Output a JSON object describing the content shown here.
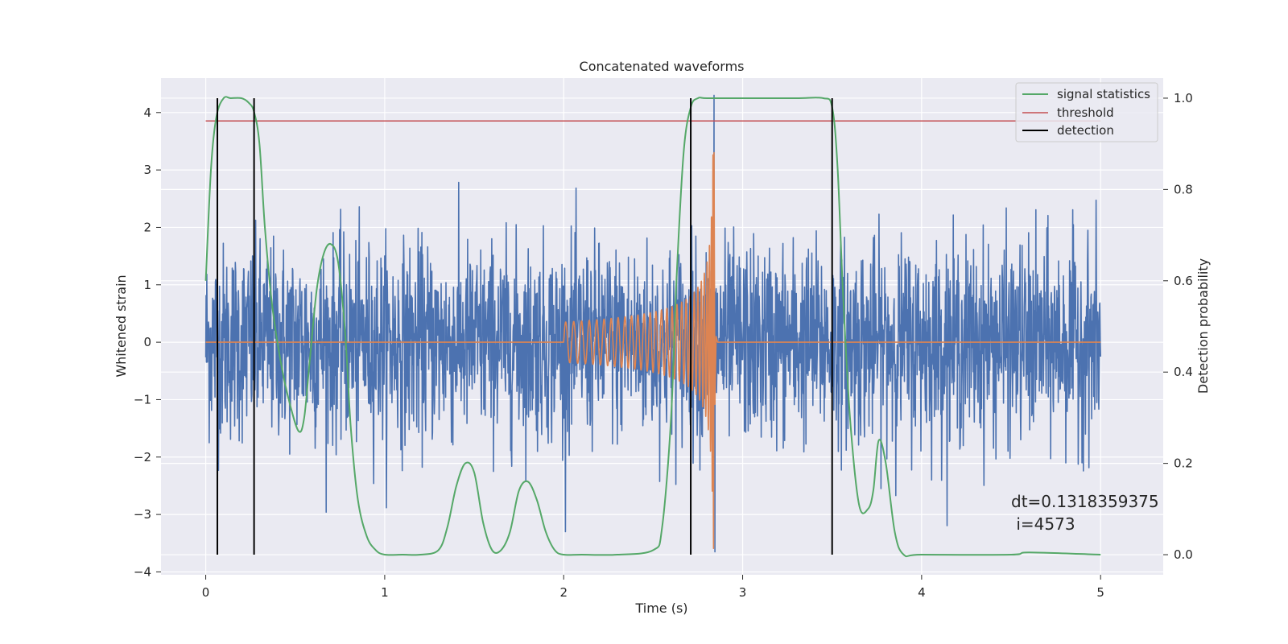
{
  "chart_data": {
    "type": "line",
    "title": "Concatenated waveforms",
    "xlabel": "Time (s)",
    "ylabel": "Whitened strain",
    "y2label": "Detection probability",
    "xlim": [
      -0.25,
      5.35
    ],
    "ylim": [
      -4.05,
      4.6
    ],
    "y2lim": [
      -0.044,
      1.044
    ],
    "x_ticks": [
      0,
      1,
      2,
      3,
      4,
      5
    ],
    "x_tick_labels": [
      "0",
      "1",
      "2",
      "3",
      "4",
      "5"
    ],
    "y_ticks": [
      -4,
      -3,
      -2,
      -1,
      0,
      1,
      2,
      3,
      4
    ],
    "y_tick_labels": [
      "−4",
      "−3",
      "−2",
      "−1",
      "0",
      "1",
      "2",
      "3",
      "4"
    ],
    "y2_ticks": [
      0.0,
      0.2,
      0.4,
      0.6,
      0.8,
      1.0
    ],
    "y2_tick_labels": [
      "0.0",
      "0.2",
      "0.4",
      "0.6",
      "0.8",
      "1.0"
    ],
    "grid": true,
    "legend_position": "top-right",
    "colors": {
      "strain": "#4c72b0",
      "waveform": "#dd8452",
      "signal_statistics": "#55a868",
      "threshold": "#c44e52",
      "detection": "#000000",
      "background": "#eaeaf2",
      "grid": "#ffffff"
    },
    "strain_noise": {
      "x_range": [
        0,
        5
      ],
      "envelope_typical": [
        -1.5,
        1.5
      ],
      "peak_max": 4.3,
      "peak_min": -3.65
    },
    "waveform_chirp": {
      "x_start": 2.0,
      "x_merger": 2.84,
      "x_end": 5.0,
      "amp_start": 0.35,
      "amp_peak": 3.3,
      "amp_trough": -3.6
    },
    "series": [
      {
        "name": "signal statistics",
        "axis": "right",
        "x": [
          0.0,
          0.03,
          0.06,
          0.1,
          0.14,
          0.2,
          0.24,
          0.27,
          0.3,
          0.33,
          0.37,
          0.42,
          0.47,
          0.52,
          0.55,
          0.58,
          0.62,
          0.66,
          0.7,
          0.74,
          0.78,
          0.81,
          0.85,
          0.9,
          0.95,
          1.0,
          1.1,
          1.2,
          1.3,
          1.35,
          1.4,
          1.45,
          1.5,
          1.55,
          1.6,
          1.65,
          1.7,
          1.75,
          1.8,
          1.85,
          1.9,
          1.95,
          2.0,
          2.1,
          2.3,
          2.5,
          2.55,
          2.6,
          2.63,
          2.67,
          2.71,
          2.75,
          2.8,
          3.0,
          3.3,
          3.45,
          3.5,
          3.53,
          3.56,
          3.6,
          3.65,
          3.7,
          3.73,
          3.76,
          3.8,
          3.85,
          3.9,
          4.0,
          4.5,
          4.6,
          5.0
        ],
        "values": [
          0.6,
          0.85,
          0.96,
          1.0,
          1.0,
          1.0,
          0.99,
          0.97,
          0.9,
          0.72,
          0.55,
          0.42,
          0.33,
          0.27,
          0.3,
          0.42,
          0.58,
          0.66,
          0.68,
          0.64,
          0.48,
          0.28,
          0.12,
          0.04,
          0.01,
          0.0,
          0.0,
          0.0,
          0.01,
          0.06,
          0.15,
          0.2,
          0.18,
          0.07,
          0.01,
          0.01,
          0.05,
          0.14,
          0.16,
          0.12,
          0.05,
          0.01,
          0.0,
          0.0,
          0.0,
          0.01,
          0.06,
          0.3,
          0.6,
          0.88,
          0.98,
          1.0,
          1.0,
          1.0,
          1.0,
          1.0,
          0.98,
          0.85,
          0.58,
          0.3,
          0.11,
          0.1,
          0.14,
          0.25,
          0.2,
          0.05,
          0.0,
          0.0,
          0.0,
          0.005,
          0.0
        ]
      },
      {
        "name": "threshold",
        "axis": "right",
        "x": [
          0.0,
          5.0
        ],
        "values": [
          0.95,
          0.95
        ]
      }
    ],
    "detections": {
      "name": "detection",
      "x": [
        0.065,
        0.27,
        2.71,
        3.5
      ]
    },
    "annotation": {
      "line1": "dt=0.1318359375",
      "line2": " i=4573"
    }
  }
}
